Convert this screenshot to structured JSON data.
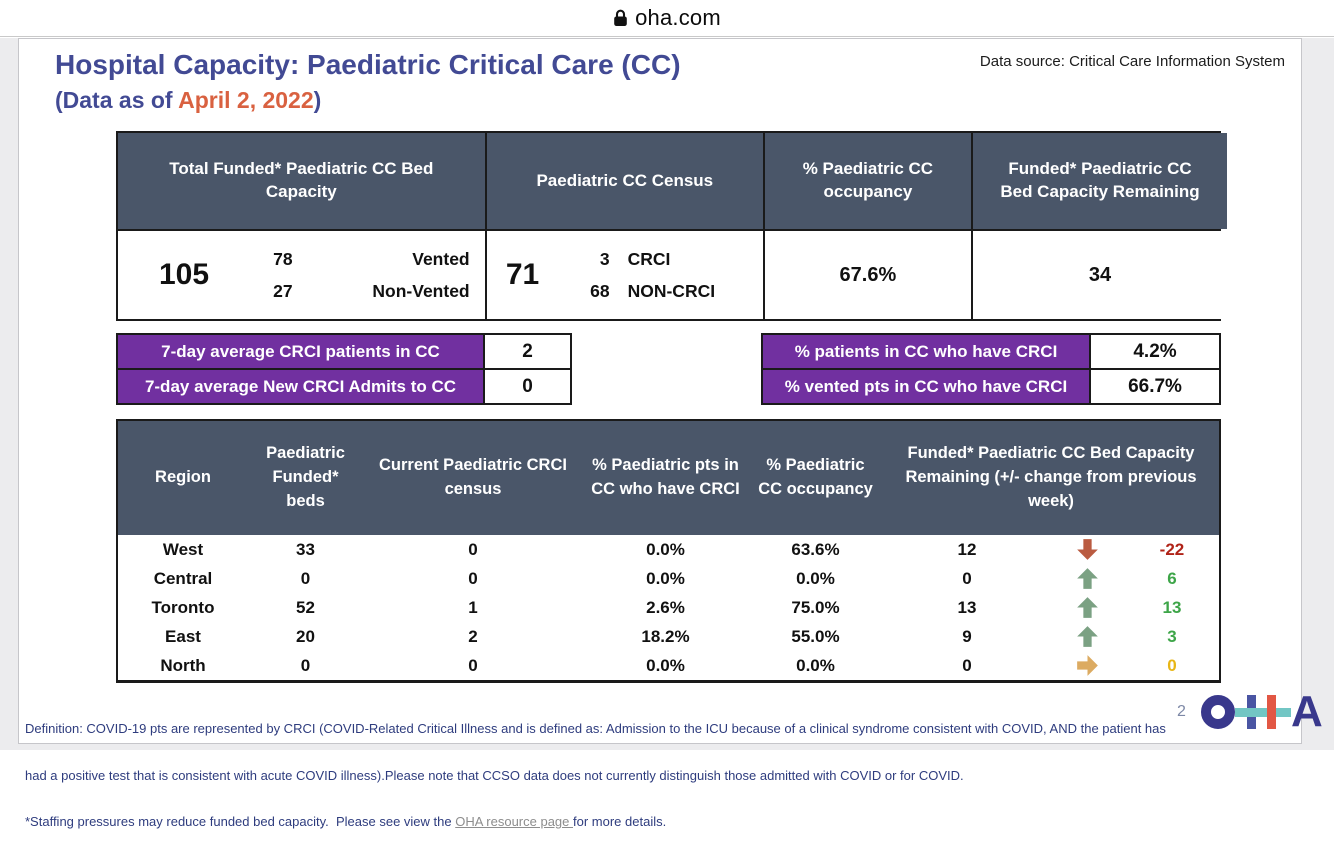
{
  "browser": {
    "url": "oha.com"
  },
  "header": {
    "title": "Hospital Capacity: Paediatric Critical Care (CC)",
    "subtitle_prefix": "(Data as of ",
    "date": "April 2, 2022",
    "subtitle_suffix": ")",
    "data_source": "Data source: Critical Care Information System"
  },
  "colors": {
    "title": "#424A94",
    "date": "#D96140",
    "table_header_bg": "#4A5669",
    "purple_bg": "#7130A0",
    "arrow_up": "#7BA183",
    "arrow_down": "#BA5B41",
    "arrow_flat": "#DCAB62",
    "change_positive": "#3DA548",
    "change_negative": "#B02318",
    "change_zero": "#E8B616",
    "footer_text": "#2E3C7E",
    "logo_indigo": "#39388C",
    "logo_teal": "#72C6C4",
    "logo_orange": "#E25744"
  },
  "summary_table": {
    "columns": [
      {
        "header": "Total Funded* Paediatric CC Bed Capacity",
        "total": "105",
        "breakdown": [
          {
            "value": "78",
            "label": "Vented"
          },
          {
            "value": "27",
            "label": "Non-Vented"
          }
        ]
      },
      {
        "header": "Paediatric CC Census",
        "total": "71",
        "breakdown": [
          {
            "value": "3",
            "label": "CRCI"
          },
          {
            "value": "68",
            "label": "NON-CRCI"
          }
        ]
      },
      {
        "header": "%  Paediatric CC occupancy",
        "value": "67.6%"
      },
      {
        "header": "Funded* Paediatric CC Bed Capacity Remaining",
        "value": "34"
      }
    ]
  },
  "stat_boxes": {
    "left": [
      {
        "label": "7-day average CRCI patients in CC",
        "value": "2"
      },
      {
        "label": "7-day average New CRCI Admits to CC",
        "value": "0"
      }
    ],
    "right": [
      {
        "label": "% patients in CC who have CRCI",
        "value": "4.2%"
      },
      {
        "label": "% vented pts in CC who have CRCI",
        "value": "66.7%"
      }
    ]
  },
  "regional_table": {
    "headers": [
      "Region",
      "Paediatric Funded* beds",
      "Current Paediatric CRCI census",
      "% Paediatric pts in CC who have CRCI",
      "% Paediatric CC occupancy",
      "Funded* Paediatric CC Bed Capacity Remaining (+/- change from previous week)"
    ],
    "rows": [
      {
        "region": "West",
        "funded_beds": "33",
        "crci_census": "0",
        "pct_crci": "0.0%",
        "pct_occupancy": "63.6%",
        "remaining": "12",
        "trend": "down",
        "change": "-22"
      },
      {
        "region": "Central",
        "funded_beds": "0",
        "crci_census": "0",
        "pct_crci": "0.0%",
        "pct_occupancy": "0.0%",
        "remaining": "0",
        "trend": "up",
        "change": "6"
      },
      {
        "region": "Toronto",
        "funded_beds": "52",
        "crci_census": "1",
        "pct_crci": "2.6%",
        "pct_occupancy": "75.0%",
        "remaining": "13",
        "trend": "up",
        "change": "13"
      },
      {
        "region": "East",
        "funded_beds": "20",
        "crci_census": "2",
        "pct_crci": "18.2%",
        "pct_occupancy": "55.0%",
        "remaining": "9",
        "trend": "up",
        "change": "3"
      },
      {
        "region": "North",
        "funded_beds": "0",
        "crci_census": "0",
        "pct_crci": "0.0%",
        "pct_occupancy": "0.0%",
        "remaining": "0",
        "trend": "flat",
        "change": "0"
      }
    ]
  },
  "footer": {
    "line1": "Definition: COVID-19 pts are represented by CRCI (COVID-Related Critical Illness and is defined as: Admission to the ICU because of a clinical syndrome consistent with COVID, AND the patient has",
    "line2": "had a positive test that is consistent with acute COVID illness).Please note that CCSO data does not currently distinguish those admitted with COVID or for COVID.",
    "line3_pre": "*Staffing pressures may reduce funded bed capacity.  Please see view the ",
    "line3_link": "OHA resource page ",
    "line3_post": "for more details.",
    "page_number": "2"
  }
}
